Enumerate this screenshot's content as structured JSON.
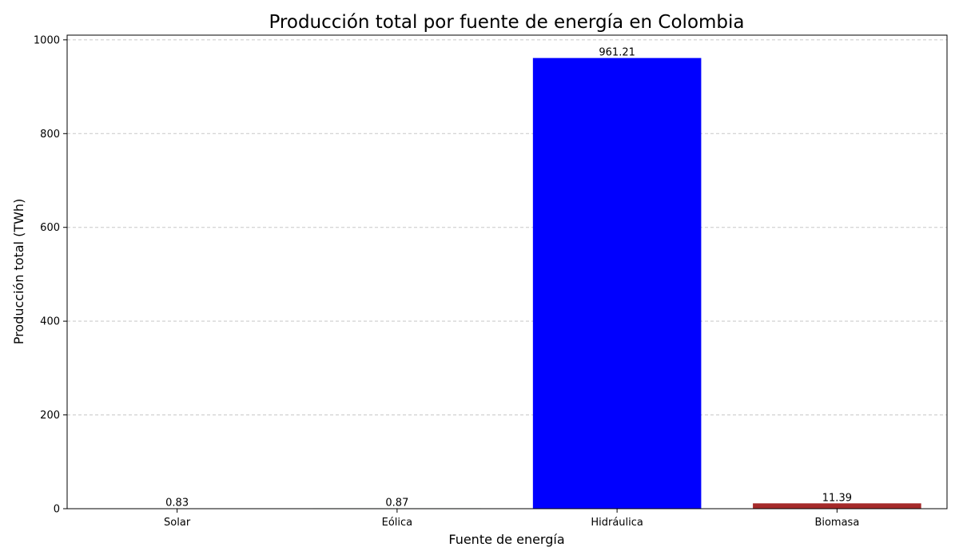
{
  "chart_data": {
    "type": "bar",
    "title": "Producción total por fuente de energía en Colombia",
    "xlabel": "Fuente de energía",
    "ylabel": "Producción total (TWh)",
    "categories": [
      "Solar",
      "Eólica",
      "Hidráulica",
      "Biomasa"
    ],
    "values": [
      0.83,
      0.87,
      961.21,
      11.39
    ],
    "value_labels": [
      "0.83",
      "0.87",
      "961.21",
      "11.39"
    ],
    "colors": [
      "#ffa500",
      "#008000",
      "#0000ff",
      "#a52a2a"
    ],
    "ylim": [
      0,
      1010
    ],
    "yticks": [
      0,
      200,
      400,
      600,
      800,
      1000
    ],
    "grid": "y-dashed"
  }
}
